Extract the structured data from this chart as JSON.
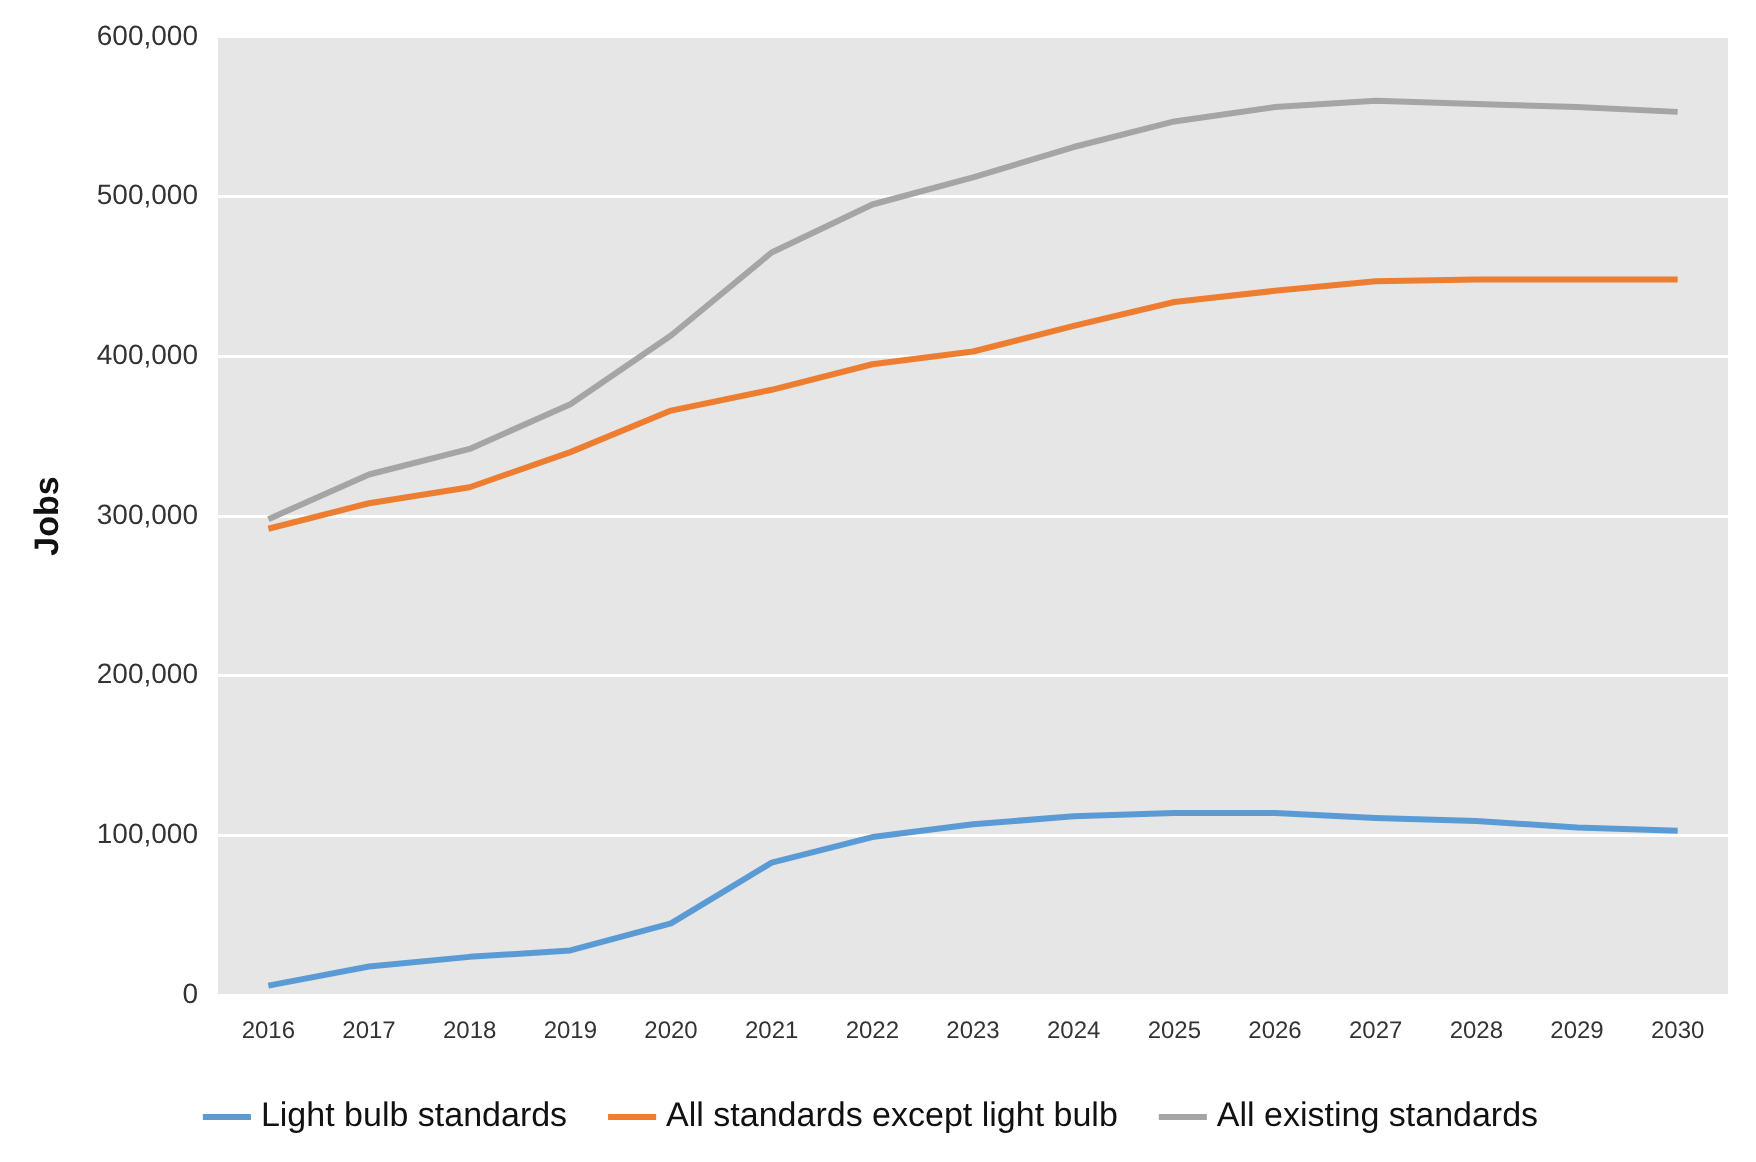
{
  "chart_data": {
    "type": "line",
    "ylabel": "Jobs",
    "categories": [
      "2016",
      "2017",
      "2018",
      "2019",
      "2020",
      "2021",
      "2022",
      "2023",
      "2024",
      "2025",
      "2026",
      "2027",
      "2028",
      "2029",
      "2030"
    ],
    "series": [
      {
        "name": "Light bulb standards",
        "color": "#5b9bd5",
        "values": [
          6000,
          18000,
          24000,
          28000,
          45000,
          83000,
          99000,
          107000,
          112000,
          114000,
          114000,
          111000,
          109000,
          105000,
          103000
        ]
      },
      {
        "name": "All standards except light bulb",
        "color": "#ed7d31",
        "values": [
          292000,
          308000,
          318000,
          340000,
          366000,
          379000,
          395000,
          403000,
          419000,
          434000,
          441000,
          447000,
          448000,
          448000,
          448000
        ]
      },
      {
        "name": "All existing standards",
        "color": "#a5a5a5",
        "values": [
          298000,
          326000,
          342000,
          370000,
          413000,
          465000,
          495000,
          512000,
          531000,
          547000,
          556000,
          560000,
          558000,
          556000,
          553000
        ]
      }
    ],
    "ylim": [
      0,
      600000
    ],
    "yticks": [
      0,
      {
        "value": 100000,
        "label": "100,000"
      },
      {
        "value": 200000,
        "label": "200,000"
      },
      {
        "value": 300000,
        "label": "300,000"
      },
      {
        "value": 400000,
        "label": "400,000"
      },
      {
        "value": 500000,
        "label": "500,000"
      },
      {
        "value": 600000,
        "label": "600,000"
      }
    ],
    "grid": "y",
    "legend": "bottom",
    "marker": "none",
    "line_style": "solid"
  }
}
